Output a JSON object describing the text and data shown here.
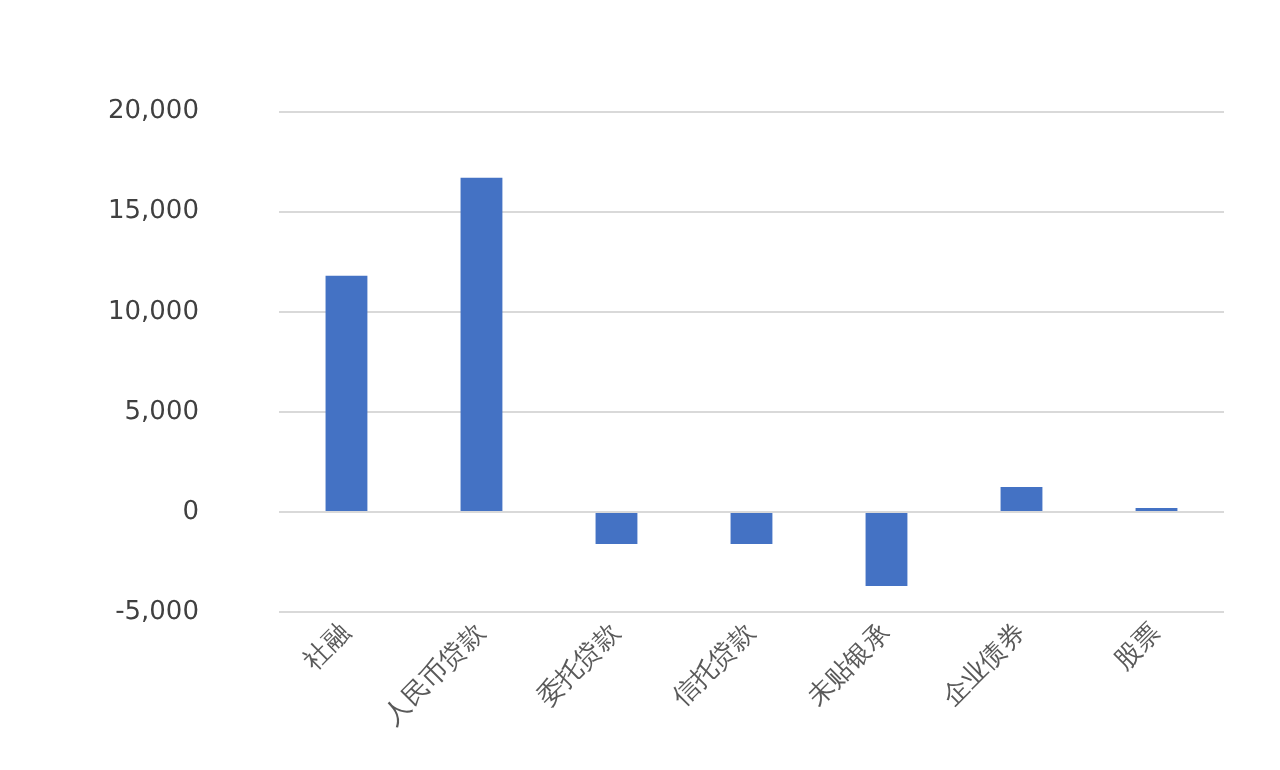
{
  "chart_data": {
    "type": "bar",
    "categories": [
      "社融",
      "人民币贷款",
      "委托贷款",
      "信托贷款",
      "未贴银承",
      "企业债券",
      "股票"
    ],
    "values": [
      11800,
      16700,
      -1600,
      -1600,
      -3700,
      1250,
      200
    ],
    "color": "#4472c4",
    "ylim": [
      -5000,
      20000
    ],
    "yticks": [
      {
        "value": -5000,
        "label": "-5,000"
      },
      {
        "value": 0,
        "label": "0"
      },
      {
        "value": 5000,
        "label": "5,000"
      },
      {
        "value": 10000,
        "label": "10,000"
      },
      {
        "value": 15000,
        "label": "15,000"
      },
      {
        "value": 20000,
        "label": "20,000"
      }
    ],
    "grid": "y"
  }
}
